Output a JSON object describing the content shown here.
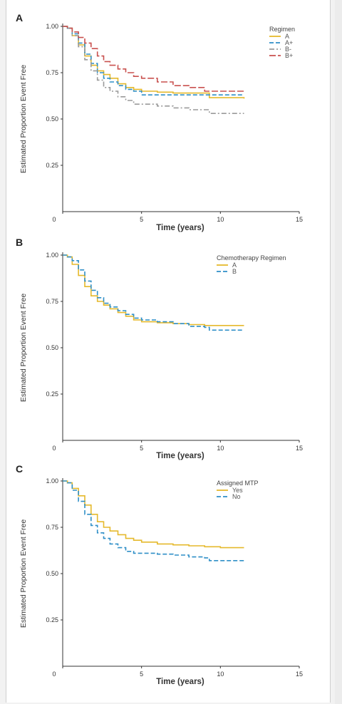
{
  "chart_data": [
    {
      "type": "line",
      "panel": "A",
      "xlabel": "Time (years)",
      "ylabel": "Estimated Proportion Event Free",
      "xlim": [
        0,
        15
      ],
      "ylim": [
        0,
        1.0
      ],
      "x_ticks": [
        "0",
        "5",
        "10",
        "15"
      ],
      "y_ticks": [
        "0.25",
        "0.50",
        "0.75",
        "1.00"
      ],
      "legend_title": "Regimen",
      "legend_position": "top-right",
      "series": [
        {
          "name": "A",
          "color": "#e5b92c",
          "dash": "solid",
          "x": [
            0,
            0.3,
            0.6,
            1.0,
            1.4,
            1.8,
            2.2,
            2.6,
            3.0,
            3.5,
            4.0,
            4.5,
            5.0,
            6.0,
            7.0,
            8.0,
            9.0,
            9.3,
            11.5
          ],
          "y": [
            1.0,
            0.99,
            0.95,
            0.9,
            0.84,
            0.79,
            0.76,
            0.74,
            0.72,
            0.69,
            0.67,
            0.66,
            0.65,
            0.645,
            0.64,
            0.64,
            0.64,
            0.615,
            0.61
          ]
        },
        {
          "name": "A+",
          "color": "#2f8fc7",
          "dash": "dashed",
          "x": [
            0,
            0.3,
            0.6,
            1.0,
            1.4,
            1.8,
            2.2,
            2.6,
            3.0,
            3.5,
            4.0,
            4.5,
            5.0,
            6.0,
            7.0,
            8.0,
            9.0,
            11.5
          ],
          "y": [
            1.0,
            0.99,
            0.96,
            0.91,
            0.85,
            0.8,
            0.75,
            0.72,
            0.7,
            0.68,
            0.66,
            0.65,
            0.63,
            0.63,
            0.63,
            0.63,
            0.63,
            0.63
          ]
        },
        {
          "name": "B-",
          "color": "#9a9a9a",
          "dash": "dashdot",
          "x": [
            0,
            0.3,
            0.6,
            1.0,
            1.4,
            1.8,
            2.2,
            2.6,
            3.0,
            3.5,
            4.0,
            4.5,
            5.0,
            6.0,
            7.0,
            8.0,
            9.0,
            9.3,
            11.5
          ],
          "y": [
            1.0,
            0.99,
            0.95,
            0.89,
            0.82,
            0.76,
            0.71,
            0.67,
            0.65,
            0.62,
            0.6,
            0.58,
            0.58,
            0.57,
            0.56,
            0.55,
            0.55,
            0.53,
            0.53
          ]
        },
        {
          "name": "B+",
          "color": "#c9514f",
          "dash": "longdash",
          "x": [
            0,
            0.3,
            0.6,
            1.0,
            1.4,
            1.8,
            2.2,
            2.6,
            3.0,
            3.5,
            4.0,
            4.5,
            5.0,
            6.0,
            7.0,
            8.0,
            9.0,
            11.5
          ],
          "y": [
            1.0,
            0.99,
            0.97,
            0.94,
            0.91,
            0.88,
            0.84,
            0.81,
            0.79,
            0.77,
            0.75,
            0.73,
            0.72,
            0.7,
            0.68,
            0.67,
            0.65,
            0.65
          ]
        }
      ]
    },
    {
      "type": "line",
      "panel": "B",
      "xlabel": "Time (years)",
      "ylabel": "Estimated Proportion Event Free",
      "xlim": [
        0,
        15
      ],
      "ylim": [
        0,
        1.0
      ],
      "x_ticks": [
        "0",
        "5",
        "10",
        "15"
      ],
      "y_ticks": [
        "0.25",
        "0.50",
        "0.75",
        "1.00"
      ],
      "legend_title": "Chemotherapy Regimen",
      "legend_position": "top-right",
      "series": [
        {
          "name": "A",
          "color": "#e5b92c",
          "dash": "solid",
          "x": [
            0,
            0.3,
            0.6,
            1.0,
            1.4,
            1.8,
            2.2,
            2.6,
            3.0,
            3.5,
            4.0,
            4.5,
            5.0,
            6.0,
            7.0,
            8.0,
            9.0,
            10.0,
            11.5
          ],
          "y": [
            1.0,
            0.99,
            0.95,
            0.89,
            0.83,
            0.78,
            0.75,
            0.73,
            0.71,
            0.69,
            0.67,
            0.65,
            0.64,
            0.635,
            0.63,
            0.625,
            0.62,
            0.62,
            0.62
          ]
        },
        {
          "name": "B",
          "color": "#2f8fc7",
          "dash": "dashed",
          "x": [
            0,
            0.3,
            0.6,
            1.0,
            1.4,
            1.8,
            2.2,
            2.6,
            3.0,
            3.5,
            4.0,
            4.5,
            5.0,
            6.0,
            7.0,
            8.0,
            9.0,
            9.3,
            11.5
          ],
          "y": [
            1.0,
            0.99,
            0.97,
            0.92,
            0.86,
            0.81,
            0.77,
            0.74,
            0.72,
            0.7,
            0.68,
            0.66,
            0.65,
            0.64,
            0.63,
            0.615,
            0.61,
            0.595,
            0.595
          ]
        }
      ]
    },
    {
      "type": "line",
      "panel": "C",
      "xlabel": "Time (years)",
      "ylabel": "Estimated Proportion Event Free",
      "xlim": [
        0,
        15
      ],
      "ylim": [
        0,
        1.0
      ],
      "x_ticks": [
        "0",
        "5",
        "10",
        "15"
      ],
      "y_ticks": [
        "0.25",
        "0.50",
        "0.75",
        "1.00"
      ],
      "legend_title": "Assigned MTP",
      "legend_position": "top-right",
      "series": [
        {
          "name": "Yes",
          "color": "#e5b92c",
          "dash": "solid",
          "x": [
            0,
            0.3,
            0.6,
            1.0,
            1.4,
            1.8,
            2.2,
            2.6,
            3.0,
            3.5,
            4.0,
            4.5,
            5.0,
            6.0,
            7.0,
            8.0,
            9.0,
            10.0,
            11.5
          ],
          "y": [
            1.0,
            0.99,
            0.96,
            0.92,
            0.87,
            0.82,
            0.78,
            0.75,
            0.73,
            0.71,
            0.69,
            0.68,
            0.67,
            0.66,
            0.655,
            0.65,
            0.645,
            0.64,
            0.64
          ]
        },
        {
          "name": "No",
          "color": "#2f8fc7",
          "dash": "dashed",
          "x": [
            0,
            0.3,
            0.6,
            1.0,
            1.4,
            1.8,
            2.2,
            2.6,
            3.0,
            3.5,
            4.0,
            4.5,
            5.0,
            6.0,
            7.0,
            8.0,
            9.0,
            9.3,
            11.5
          ],
          "y": [
            1.0,
            0.99,
            0.95,
            0.89,
            0.82,
            0.76,
            0.72,
            0.69,
            0.66,
            0.64,
            0.62,
            0.61,
            0.61,
            0.605,
            0.6,
            0.59,
            0.585,
            0.57,
            0.57
          ]
        }
      ]
    }
  ]
}
